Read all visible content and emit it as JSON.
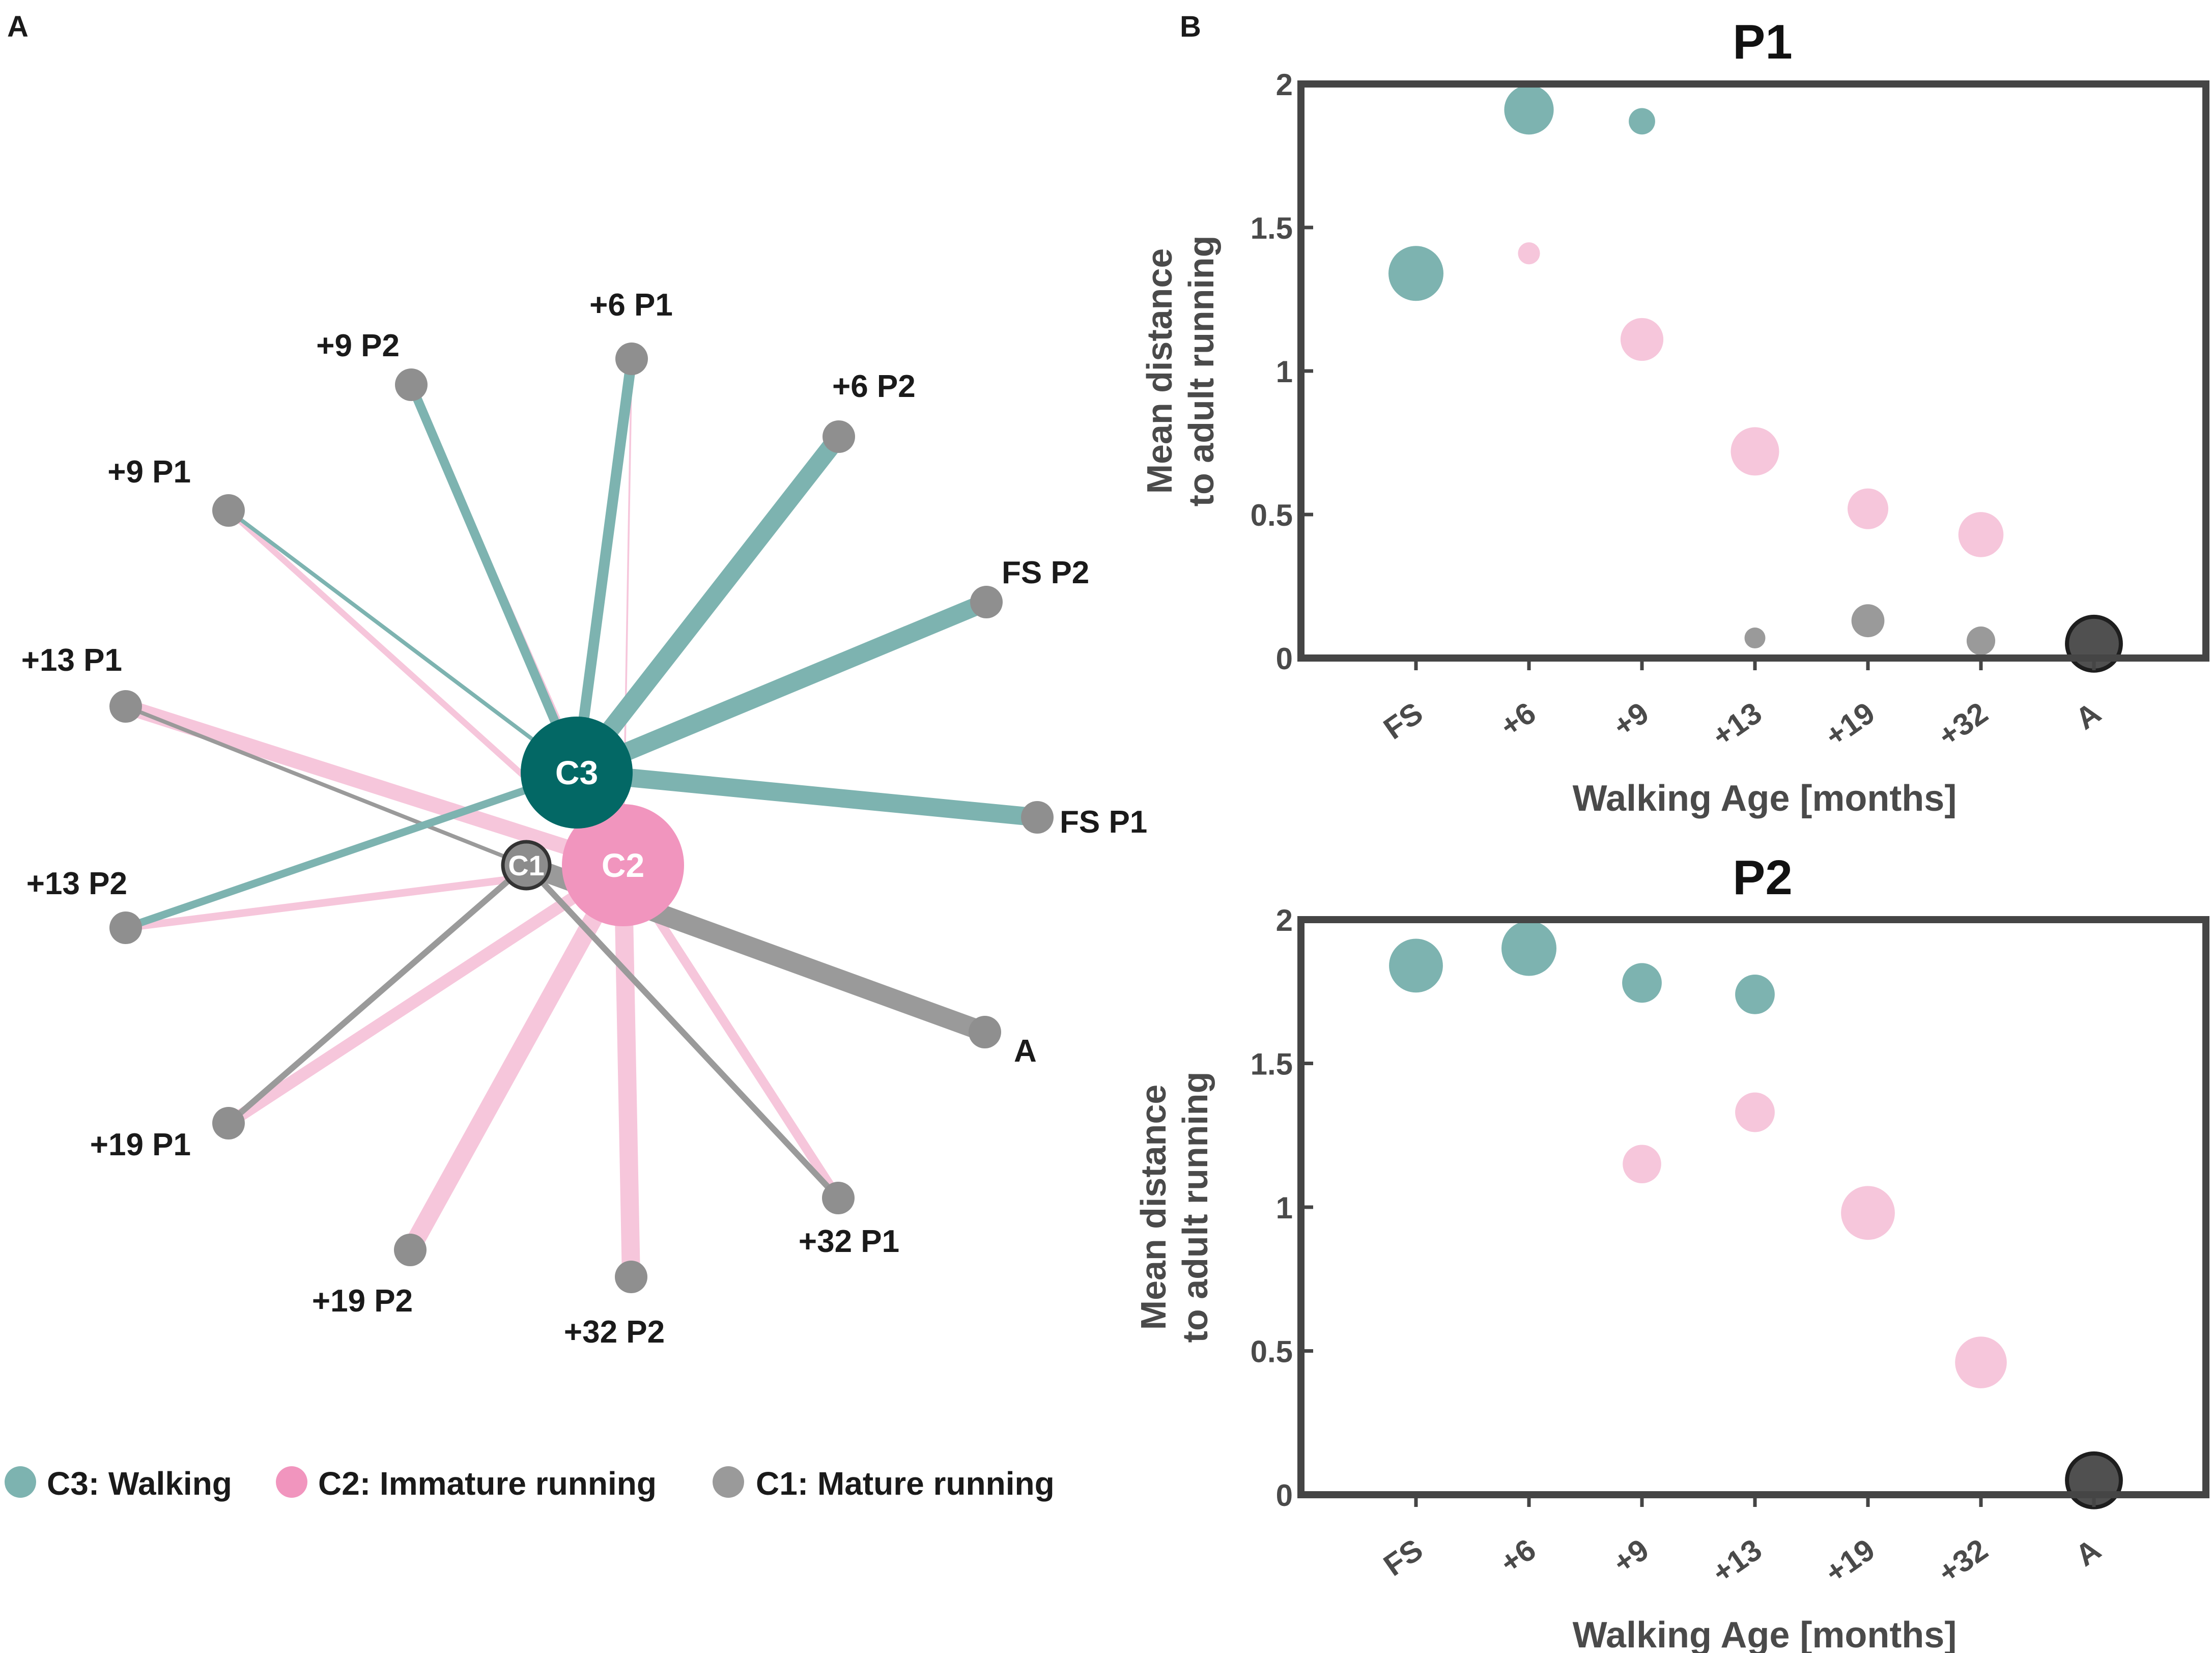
{
  "panels": {
    "a_label": "A",
    "b_label": "B"
  },
  "colors": {
    "c3_node": "#036865",
    "c3_edge": "#7db3b0",
    "c2_node": "#f195be",
    "c2_edge": "#f6c6db",
    "c1_edge": "#9a9a9a",
    "leaf": "#8f8f8f",
    "axis": "#454545",
    "text": "#1a1a1a",
    "axis_text": "#4a4a4a",
    "adult_marker": "#505050"
  },
  "legend": [
    {
      "label": "C3: Walking",
      "color": "#7db3b0"
    },
    {
      "label": "C2: Immature running",
      "color": "#f195be"
    },
    {
      "label": "C1: Mature running",
      "color": "#9a9a9a"
    }
  ],
  "chart_data": [
    {
      "type": "network",
      "title": "",
      "clusters": [
        {
          "id": "C3",
          "label": "C3",
          "name": "Walking",
          "weight": 1.0
        },
        {
          "id": "C2",
          "label": "C2",
          "name": "Immature running",
          "weight": 1.05
        },
        {
          "id": "C1",
          "label": "C1",
          "name": "Mature running",
          "weight": 0.35
        }
      ],
      "leaves": [
        "+6 P1",
        "+6 P2",
        "FS P2",
        "FS P1",
        "A",
        "+32 P1",
        "+32 P2",
        "+19 P2",
        "+19 P1",
        "+13 P2",
        "+13 P1",
        "+9 P1",
        "+9 P2"
      ],
      "edges": [
        {
          "from": "C3",
          "to": "+6 P1",
          "weight": 3.5
        },
        {
          "from": "C3",
          "to": "+6 P2",
          "weight": 6
        },
        {
          "from": "C3",
          "to": "FS P2",
          "weight": 6
        },
        {
          "from": "C3",
          "to": "FS P1",
          "weight": 6
        },
        {
          "from": "C3",
          "to": "+13 P2",
          "weight": 2.5
        },
        {
          "from": "C3",
          "to": "+9 P1",
          "weight": 1.3
        },
        {
          "from": "C3",
          "to": "+9 P2",
          "weight": 3
        },
        {
          "from": "C2",
          "to": "+6 P1",
          "weight": 0.6
        },
        {
          "from": "C2",
          "to": "+9 P1",
          "weight": 2
        },
        {
          "from": "C2",
          "to": "+9 P2",
          "weight": 1.3
        },
        {
          "from": "C2",
          "to": "+13 P1",
          "weight": 5
        },
        {
          "from": "C2",
          "to": "+13 P2",
          "weight": 2.5
        },
        {
          "from": "C2",
          "to": "+19 P1",
          "weight": 4
        },
        {
          "from": "C2",
          "to": "+19 P2",
          "weight": 6
        },
        {
          "from": "C2",
          "to": "+32 P2",
          "weight": 6
        },
        {
          "from": "C2",
          "to": "+32 P1",
          "weight": 3
        },
        {
          "from": "C1",
          "to": "A",
          "weight": 6.5
        },
        {
          "from": "C1",
          "to": "+13 P1",
          "weight": 1.3
        },
        {
          "from": "C1",
          "to": "+19 P1",
          "weight": 2
        },
        {
          "from": "C1",
          "to": "+32 P1",
          "weight": 2
        }
      ]
    },
    {
      "type": "scatter",
      "title": "P1",
      "xlabel": "Walking Age [months]",
      "ylabel": [
        "Mean distance",
        "to adult running"
      ],
      "categories": [
        "FS",
        "+6",
        "+9",
        "+13",
        "+19",
        "+32",
        "A"
      ],
      "ylim": [
        0,
        2
      ],
      "yticks": [
        0,
        0.5,
        1,
        1.5,
        2
      ],
      "ytick_labels": [
        "0",
        "0.5",
        "1",
        "1.5",
        "2"
      ],
      "series": [
        {
          "name": "C3: Walking",
          "color": "#7db3b0",
          "points": [
            {
              "x": "FS",
              "y": 1.34,
              "size": 1.0
            },
            {
              "x": "+6",
              "y": 1.91,
              "size": 0.9
            },
            {
              "x": "+9",
              "y": 1.87,
              "size": 0.48
            }
          ]
        },
        {
          "name": "C2: Immature running",
          "color": "#f6c6db",
          "points": [
            {
              "x": "+6",
              "y": 1.41,
              "size": 0.4
            },
            {
              "x": "+9",
              "y": 1.11,
              "size": 0.78
            },
            {
              "x": "+13",
              "y": 0.72,
              "size": 0.88
            },
            {
              "x": "+19",
              "y": 0.52,
              "size": 0.74
            },
            {
              "x": "+32",
              "y": 0.43,
              "size": 0.82
            }
          ]
        },
        {
          "name": "C1: Mature running",
          "color": "#9a9a9a",
          "points": [
            {
              "x": "+13",
              "y": 0.07,
              "size": 0.38
            },
            {
              "x": "+19",
              "y": 0.13,
              "size": 0.6
            },
            {
              "x": "+32",
              "y": 0.06,
              "size": 0.52
            }
          ]
        },
        {
          "name": "A",
          "color": "#505050",
          "outlined": true,
          "points": [
            {
              "x": "A",
              "y": 0.05,
              "size": 0.98
            }
          ]
        }
      ]
    },
    {
      "type": "scatter",
      "title": "P2",
      "xlabel": "Walking Age [months]",
      "ylabel": [
        "Mean distance",
        "to adult running"
      ],
      "categories": [
        "FS",
        "+6",
        "+9",
        "+13",
        "+19",
        "+32",
        "A"
      ],
      "ylim": [
        0,
        2
      ],
      "yticks": [
        0,
        0.5,
        1,
        1.5,
        2
      ],
      "ytick_labels": [
        "0",
        "0.5",
        "1",
        "1.5",
        "2"
      ],
      "series": [
        {
          "name": "C3: Walking",
          "color": "#7db3b0",
          "points": [
            {
              "x": "FS",
              "y": 1.84,
              "size": 0.98
            },
            {
              "x": "+6",
              "y": 1.9,
              "size": 1.0
            },
            {
              "x": "+9",
              "y": 1.78,
              "size": 0.72
            },
            {
              "x": "+13",
              "y": 1.74,
              "size": 0.72
            }
          ]
        },
        {
          "name": "C2: Immature running",
          "color": "#f6c6db",
          "points": [
            {
              "x": "+9",
              "y": 1.15,
              "size": 0.7
            },
            {
              "x": "+13",
              "y": 1.33,
              "size": 0.72
            },
            {
              "x": "+19",
              "y": 0.98,
              "size": 0.98
            },
            {
              "x": "+32",
              "y": 0.46,
              "size": 0.94
            }
          ]
        },
        {
          "name": "A",
          "color": "#505050",
          "outlined": true,
          "points": [
            {
              "x": "A",
              "y": 0.05,
              "size": 0.98
            }
          ]
        }
      ]
    }
  ]
}
